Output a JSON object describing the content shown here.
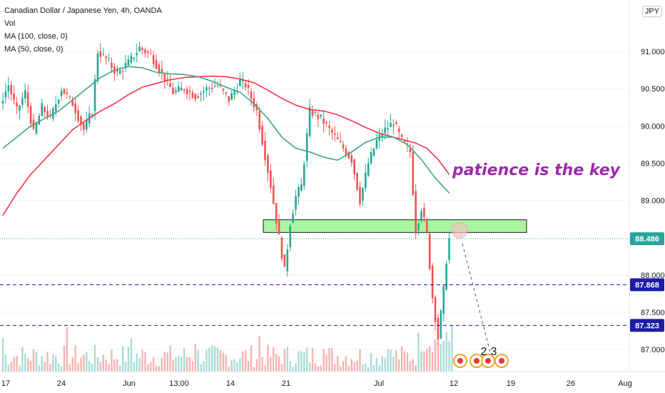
{
  "legend": {
    "title": "Canadian Dollar / Japanese Yen, 4h, OANDA",
    "vol": "Vol",
    "ma100": "MA (100, close, 0)",
    "ma50": "MA (50, close, 0)"
  },
  "currency": "JPY",
  "annotation": "patience is the key",
  "price_labels": {
    "last": "88.486",
    "level1": "87.868",
    "level2": "87.323"
  },
  "event_markers": [
    "2",
    "3"
  ],
  "colors": {
    "up": "#26a69a",
    "down": "#ef5350",
    "ma100": "#f23645",
    "ma50": "#3ba886",
    "zone_fill": "#a9f5a0",
    "dashed": "#1c1ca8",
    "last_price": "#26a69a",
    "level_label": "#1c1ca8",
    "annotation": "#9c2bab"
  },
  "chart_data": {
    "type": "candlestick",
    "title": "Canadian Dollar / Japanese Yen, 4h, OANDA",
    "y_ticks": [
      "91.000",
      "90.500",
      "90.000",
      "89.500",
      "89.000",
      "88.000",
      "87.500",
      "87.000"
    ],
    "x_ticks": [
      "17",
      "24",
      "Jun",
      "13:00",
      "14",
      "21",
      "Jul",
      "12",
      "19",
      "26",
      "Aug"
    ],
    "ylim": [
      86.65,
      91.6
    ],
    "last_price": 88.486,
    "horizontal_levels": [
      87.868,
      87.323
    ],
    "support_zone": [
      88.57,
      88.74
    ],
    "ma100": [
      [
        0,
        88.8
      ],
      [
        5,
        89.1
      ],
      [
        10,
        89.35
      ],
      [
        15,
        89.55
      ],
      [
        20,
        89.75
      ],
      [
        25,
        89.95
      ],
      [
        30,
        90.08
      ],
      [
        35,
        90.2
      ],
      [
        40,
        90.3
      ],
      [
        45,
        90.42
      ],
      [
        50,
        90.52
      ],
      [
        55,
        90.57
      ],
      [
        60,
        90.62
      ],
      [
        65,
        90.65
      ],
      [
        70,
        90.66
      ],
      [
        75,
        90.67
      ],
      [
        80,
        90.66
      ],
      [
        85,
        90.63
      ],
      [
        90,
        90.58
      ],
      [
        95,
        90.48
      ],
      [
        100,
        90.37
      ],
      [
        105,
        90.28
      ],
      [
        110,
        90.22
      ],
      [
        115,
        90.2
      ],
      [
        120,
        90.15
      ],
      [
        125,
        90.07
      ],
      [
        130,
        89.98
      ],
      [
        135,
        89.9
      ],
      [
        140,
        89.85
      ],
      [
        145,
        89.8
      ],
      [
        148,
        89.77
      ],
      [
        152,
        89.7
      ],
      [
        156,
        89.55
      ],
      [
        160,
        89.35
      ]
    ],
    "ma50": [
      [
        0,
        89.7
      ],
      [
        5,
        89.85
      ],
      [
        10,
        90.0
      ],
      [
        15,
        90.1
      ],
      [
        20,
        90.2
      ],
      [
        25,
        90.35
      ],
      [
        30,
        90.5
      ],
      [
        35,
        90.65
      ],
      [
        40,
        90.75
      ],
      [
        45,
        90.8
      ],
      [
        50,
        90.78
      ],
      [
        55,
        90.72
      ],
      [
        60,
        90.7
      ],
      [
        65,
        90.69
      ],
      [
        70,
        90.66
      ],
      [
        75,
        90.6
      ],
      [
        80,
        90.52
      ],
      [
        85,
        90.45
      ],
      [
        90,
        90.3
      ],
      [
        95,
        90.1
      ],
      [
        100,
        89.85
      ],
      [
        105,
        89.7
      ],
      [
        110,
        89.65
      ],
      [
        115,
        89.58
      ],
      [
        120,
        89.54
      ],
      [
        125,
        89.65
      ],
      [
        130,
        89.78
      ],
      [
        135,
        89.85
      ],
      [
        140,
        89.85
      ],
      [
        145,
        89.75
      ],
      [
        150,
        89.55
      ],
      [
        155,
        89.3
      ],
      [
        160,
        89.1
      ]
    ]
  }
}
